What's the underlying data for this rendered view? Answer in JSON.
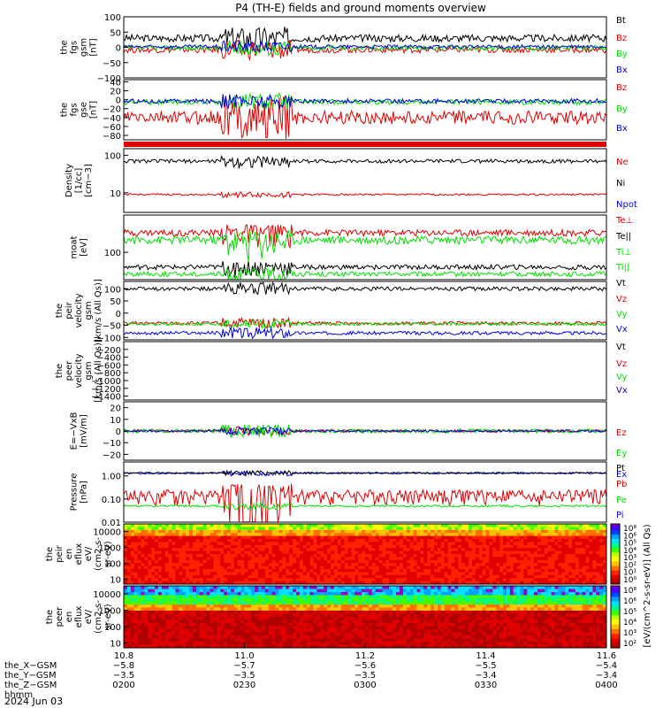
{
  "title": "P4 (TH-E) fields and ground moments overview",
  "date_label": "2024 Jun 03",
  "colors": {
    "black": "#000000",
    "red": "#e00000",
    "green": "#00e000",
    "blue": "#0000e0"
  },
  "chart_data": [
    {
      "id": "fgs_gsm",
      "type": "line",
      "ylabel": [
        "the",
        "fgs",
        "gsm",
        "[nT]"
      ],
      "ylim": [
        -100,
        100
      ],
      "yticks": [
        "100",
        "50",
        "0",
        "−50",
        "−100"
      ],
      "legend": [
        {
          "name": "Bt",
          "color": "#000000"
        },
        {
          "name": "Bz",
          "color": "#e00000"
        },
        {
          "name": "By",
          "color": "#00e000"
        },
        {
          "name": "Bx",
          "color": "#0000e0"
        }
      ],
      "series": [
        {
          "name": "Bt",
          "base": 30,
          "amp": 12
        },
        {
          "name": "Bz",
          "base": -8,
          "amp": 10
        },
        {
          "name": "By",
          "base": -2,
          "amp": 8
        },
        {
          "name": "Bx",
          "base": 2,
          "amp": 6
        }
      ]
    },
    {
      "id": "fgs_gse",
      "type": "line",
      "ylabel": [
        "the",
        "fgs",
        "gse",
        "[nT]"
      ],
      "ylim": [
        -90,
        45
      ],
      "yticks": [
        "40",
        "20",
        "0",
        "−20",
        "−40",
        "−60",
        "−80"
      ],
      "legend": [
        {
          "name": "Bz",
          "color": "#e00000"
        },
        {
          "name": "By",
          "color": "#00e000"
        },
        {
          "name": "Bx",
          "color": "#0000e0"
        }
      ],
      "series": [
        {
          "name": "Bz",
          "base": -40,
          "amp": 15
        },
        {
          "name": "By",
          "base": -5,
          "amp": 6
        },
        {
          "name": "Bx",
          "base": -3,
          "amp": 5
        }
      ]
    },
    {
      "id": "density",
      "type": "line",
      "yscale": "log",
      "ylabel": [
        "Density",
        "[1/cc]",
        "[cm−3]"
      ],
      "ylim": [
        3,
        150
      ],
      "yticks": [
        "100",
        "10"
      ],
      "legend": [
        {
          "name": "Ne",
          "color": "#e00000"
        },
        {
          "name": "Ni",
          "color": "#000000"
        },
        {
          "name": "Npot",
          "color": "#0000e0"
        }
      ],
      "series": [
        {
          "name": "Ni",
          "base": 70,
          "amp": 8
        },
        {
          "name": "Ne",
          "base": 9,
          "amp": 0.5
        }
      ]
    },
    {
      "id": "temperature",
      "type": "line",
      "yscale": "log",
      "ylabel": [
        "moat",
        "[eV]"
      ],
      "ylim": [
        20,
        900
      ],
      "yticks": [
        "100"
      ],
      "legend": [
        {
          "name": "Te⊥",
          "color": "#e00000"
        },
        {
          "name": "Te||",
          "color": "#000000"
        },
        {
          "name": "Ti⊥",
          "color": "#00e000"
        },
        {
          "name": "Ti||",
          "color": "#00e000"
        }
      ],
      "series": [
        {
          "name": "Te⊥",
          "base": 320,
          "amp": 60
        },
        {
          "name": "Ti⊥",
          "base": 210,
          "amp": 50
        },
        {
          "name": "Te||",
          "base": 42,
          "amp": 6
        },
        {
          "name": "Ti||",
          "base": 28,
          "amp": 4
        }
      ]
    },
    {
      "id": "peir_velocity",
      "type": "line",
      "ylabel": [
        "the",
        "peir",
        "velocity",
        "gsm",
        "[km/s (All Qs)]"
      ],
      "ylim": [
        -110,
        130
      ],
      "yticks": [
        "100",
        "50",
        "0",
        "−50",
        "−100"
      ],
      "legend": [
        {
          "name": "Vt",
          "color": "#000000"
        },
        {
          "name": "Vz",
          "color": "#e00000"
        },
        {
          "name": "Vy",
          "color": "#00e000"
        },
        {
          "name": "Vx",
          "color": "#0000e0"
        }
      ],
      "series": [
        {
          "name": "Vt",
          "base": 100,
          "amp": 8
        },
        {
          "name": "Vz",
          "base": -42,
          "amp": 7
        },
        {
          "name": "Vy",
          "base": -45,
          "amp": 6
        },
        {
          "name": "Vx",
          "base": -82,
          "amp": 7
        }
      ]
    },
    {
      "id": "peer_velocity",
      "type": "line",
      "ylabel": [
        "the",
        "peer",
        "velocity",
        "gsm",
        "[km/s (All Qs)]"
      ],
      "ylim": [
        -1500,
        0
      ],
      "yticks": [
        "−200",
        "−400",
        "−600",
        "−800",
        "−1000",
        "−1200",
        "−1400"
      ],
      "legend": [
        {
          "name": "Vt",
          "color": "#000000"
        },
        {
          "name": "Vz",
          "color": "#e00000"
        },
        {
          "name": "Vy",
          "color": "#00e000"
        },
        {
          "name": "Vx",
          "color": "#0000e0"
        }
      ],
      "series": []
    },
    {
      "id": "efield",
      "type": "line",
      "ylabel": [
        "E=−VxB",
        "[mV/m]"
      ],
      "ylim": [
        -25,
        25
      ],
      "yticks": [
        "20",
        "10",
        "0",
        "−10",
        "−20"
      ],
      "legend": [
        {
          "name": "Ez",
          "color": "#e00000"
        },
        {
          "name": "Ey",
          "color": "#00e000"
        },
        {
          "name": "Ex",
          "color": "#0000e0"
        }
      ],
      "series": [
        {
          "name": "Ez",
          "base": 0,
          "amp": 1.2
        },
        {
          "name": "Ey",
          "base": 0,
          "amp": 1.8
        },
        {
          "name": "Ex",
          "base": 0,
          "amp": 1
        }
      ]
    },
    {
      "id": "pressure",
      "type": "line",
      "yscale": "log",
      "ylabel": [
        "Pressure",
        "[nPa]"
      ],
      "ylim": [
        0.01,
        4
      ],
      "yticks": [
        "1.00",
        "0.10",
        "0.01"
      ],
      "legend": [
        {
          "name": "Pt",
          "color": "#000000"
        },
        {
          "name": "Pb",
          "color": "#e00000"
        },
        {
          "name": "Pe",
          "color": "#00e000"
        },
        {
          "name": "Pi",
          "color": "#0000e0"
        }
      ],
      "series": [
        {
          "name": "Pi",
          "base": 1.3,
          "amp": 0.1
        },
        {
          "name": "Pt",
          "base": 1.35,
          "amp": 0.1
        },
        {
          "name": "Pb",
          "base": 0.15,
          "amp": 0.1
        },
        {
          "name": "Pe",
          "base": 0.05,
          "amp": 0.005
        }
      ]
    },
    {
      "id": "peir_spec",
      "type": "heatmap",
      "ylabel": [
        "the",
        "peir",
        "en",
        "eflux",
        "eV/",
        "(cm2-s-",
        "sr-eV)"
      ],
      "yscale": "log",
      "ylim": [
        5,
        30000
      ],
      "yticks": [
        "10000",
        "1000",
        "100",
        "10"
      ]
    },
    {
      "id": "peer_spec",
      "type": "heatmap",
      "ylabel": [
        "the",
        "peer",
        "en",
        "eflux",
        "eV/",
        "(cm2-s-",
        "sr-eV)"
      ],
      "yscale": "log",
      "ylim": [
        5,
        30000
      ],
      "yticks": [
        "10000",
        "1000",
        "100",
        "10"
      ]
    }
  ],
  "colorbar": {
    "label": "[eV/(cm^2-s-sr-eV)] (All Qs)",
    "upper_ticks": [
      "10⁸",
      "10⁶",
      "10⁵",
      "10⁴",
      "10³",
      "10²",
      "10¹",
      "10⁰"
    ],
    "lower_ticks": [
      "10⁸",
      "10⁶",
      "10⁵",
      "10⁴",
      "10³",
      "10²"
    ]
  },
  "xaxis": {
    "tick_labels": [
      "10.8",
      "11.0",
      "11.2",
      "11.4",
      "11.6"
    ],
    "rows": [
      {
        "label": "the_X−GSM",
        "values": [
          "−5.8",
          "−5.7",
          "−5.6",
          "−5.5",
          "−5.4"
        ]
      },
      {
        "label": "the_Y−GSM",
        "values": [
          "−3.5",
          "−3.5",
          "−3.5",
          "−3.4",
          "−3.4"
        ]
      },
      {
        "label": "the_Z−GSM",
        "values": [
          "0200",
          "0230",
          "0300",
          "0330",
          "0400"
        ]
      },
      {
        "label": "hhmm",
        "values": [
          "",
          "",
          "",
          "",
          ""
        ]
      }
    ]
  }
}
